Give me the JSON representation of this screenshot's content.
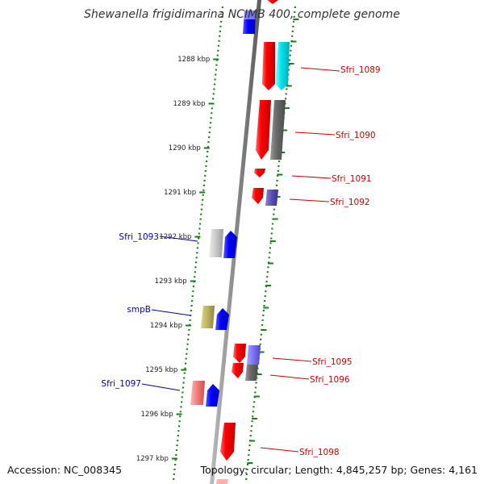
{
  "header": {
    "title": "Shewanella frigidimarina NCIMB 400, complete genome"
  },
  "footer": {
    "accession": "Accession: NC_008345",
    "topology": "Topology: circular; Length: 4,845,257 bp; Genes: 4,161"
  },
  "colors": {
    "backbone": "#8c8c8c",
    "dotted_line": "#1a7f1a",
    "tick": "#1a7f1a",
    "label_red": "#cc0000",
    "label_blue": "#0000bb"
  },
  "axis": {
    "unit": "kbp",
    "ticks": [
      "1288 kbp",
      "1289 kbp",
      "1290 kbp",
      "1291 kbp",
      "1292 kbp",
      "1293 kbp",
      "1294 kbp",
      "1295 kbp",
      "1296 kbp",
      "1297 kbp"
    ]
  },
  "gene_labels": [
    {
      "text": "Sfri_1089",
      "side": "right",
      "color": "red"
    },
    {
      "text": "Sfri_1090",
      "side": "right",
      "color": "red"
    },
    {
      "text": "Sfri_1091",
      "side": "right",
      "color": "red"
    },
    {
      "text": "Sfri_1092",
      "side": "right",
      "color": "red"
    },
    {
      "text": "Sfri_1093",
      "side": "left",
      "color": "blue"
    },
    {
      "text": "smpB",
      "side": "left",
      "color": "blue"
    },
    {
      "text": "Sfri_1095",
      "side": "right",
      "color": "red"
    },
    {
      "text": "Sfri_1096",
      "side": "right",
      "color": "red"
    },
    {
      "text": "Sfri_1097",
      "side": "left",
      "color": "blue"
    },
    {
      "text": "Sfri_1098",
      "side": "right",
      "color": "red"
    }
  ]
}
